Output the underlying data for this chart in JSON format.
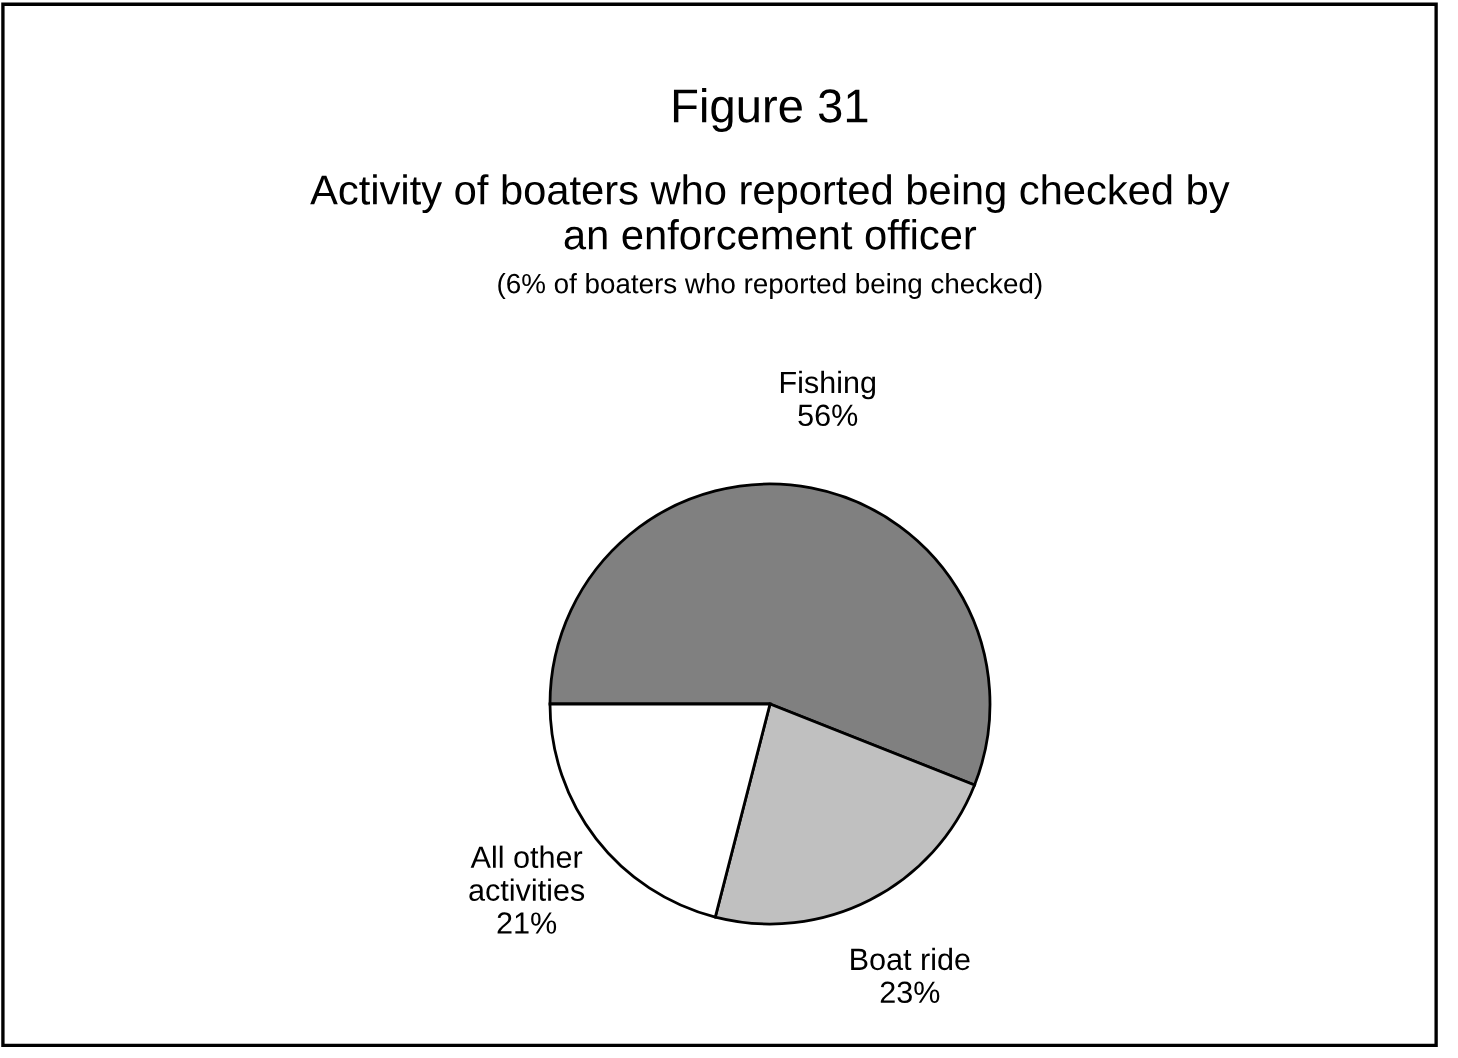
{
  "chart_data": {
    "type": "pie",
    "title": "Figure 31",
    "subtitle": "Activity of boaters who reported being checked by\nan enforcement officer",
    "annotations": [
      "(6% of boaters who reported being checked)"
    ],
    "categories": [
      "Fishing",
      "Boat ride",
      "All other\nactivities"
    ],
    "values": [
      56,
      23,
      21
    ],
    "colors": [
      "#808080",
      "#c0c0c0",
      "#ffffff"
    ],
    "value_labels": [
      "56%",
      "23%",
      "21%"
    ]
  }
}
